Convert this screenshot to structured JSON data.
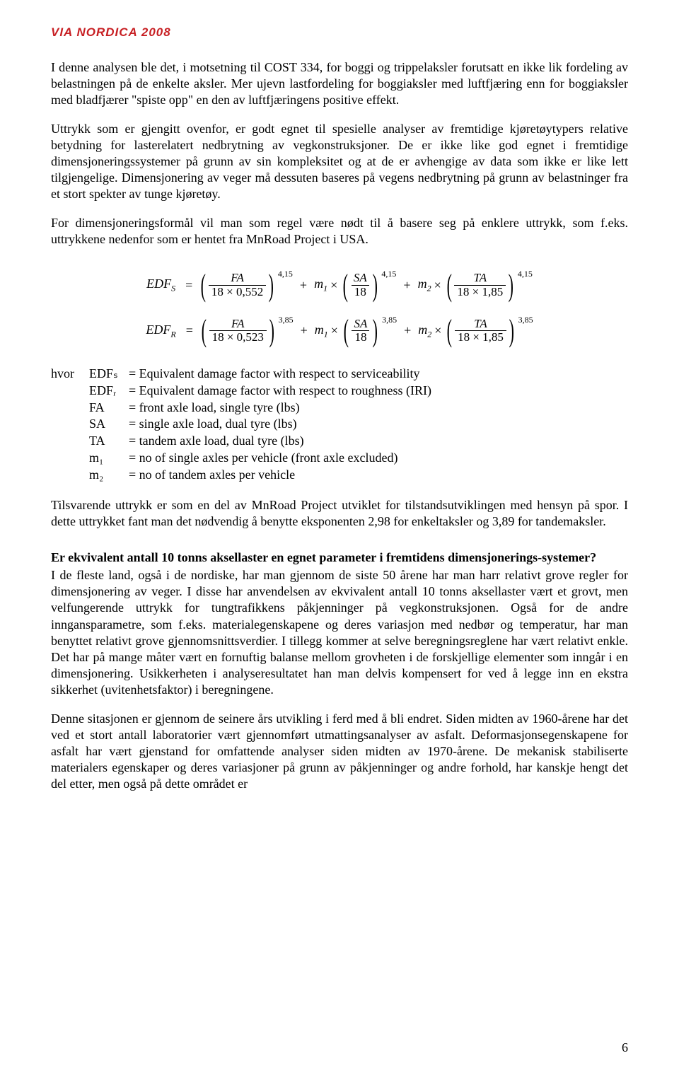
{
  "logo": {
    "via": "VIA",
    "nordica": "NORDICA",
    "year": "2008"
  },
  "p1": "I denne analysen ble det, i motsetning til COST 334, for boggi og trippelaksler forutsatt en ikke lik fordeling av belastningen på de enkelte aksler. Mer ujevn lastfordeling for boggiaksler med luftfjæring enn for boggiaksler med bladfjærer \"spiste opp\" en den av luftfjæringens positive effekt.",
  "p2": "Uttrykk som er gjengitt ovenfor, er godt egnet til spesielle analyser av fremtidige kjøretøytypers relative betydning for lasterelatert nedbrytning av vegkonstruksjoner. De er ikke like god egnet i fremtidige dimensjoneringssystemer på grunn av sin kompleksitet og at de er avhengige av data som ikke er like lett tilgjengelige. Dimensjonering av veger må dessuten baseres på vegens nedbrytning på grunn av belastninger fra et stort spekter av tunge kjøretøy.",
  "p3": "For dimensjoneringsformål vil man som regel være nødt til å basere seg på enklere uttrykk, som f.eks. uttrykkene nedenfor som er hentet fra MnRoad Project i USA.",
  "eq1": {
    "lhs": "EDF",
    "sub": "S",
    "t1_num": "FA",
    "t1_den": "18 × 0,552",
    "t1_exp": "4,15",
    "t2_m": "m",
    "t2_msub": "1",
    "t2_num": "SA",
    "t2_den": "18",
    "t2_exp": "4,15",
    "t3_m": "m",
    "t3_msub": "2",
    "t3_num": "TA",
    "t3_den": "18 × 1,85",
    "t3_exp": "4,15"
  },
  "eq2": {
    "lhs": "EDF",
    "sub": "R",
    "t1_num": "FA",
    "t1_den": "18 × 0,523",
    "t1_exp": "3,85",
    "t2_m": "m",
    "t2_msub": "1",
    "t2_num": "SA",
    "t2_den": "18",
    "t2_exp": "3,85",
    "t3_m": "m",
    "t3_msub": "2",
    "t3_num": "TA",
    "t3_den": "18 × 1,85",
    "t3_exp": "3,85"
  },
  "defs": {
    "lead": "hvor",
    "rows": [
      {
        "sym": "EDFₛ",
        "txt": "= Equivalent damage factor with respect to serviceability"
      },
      {
        "sym": "EDFᵣ",
        "txt": "= Equivalent damage factor with respect to roughness (IRI)"
      },
      {
        "sym": "FA",
        "txt": "= front axle load, single tyre (lbs)"
      },
      {
        "sym": "SA",
        "txt": "= single axle load, dual tyre (lbs)"
      },
      {
        "sym": "TA",
        "txt": "= tandem axle load, dual tyre (lbs)"
      },
      {
        "sym": "m₁",
        "txt": "= no of single axles per vehicle (front axle excluded)"
      },
      {
        "sym": "m₂",
        "txt": "= no of tandem axles per vehicle"
      }
    ]
  },
  "p4": "Tilsvarende uttrykk er som en del av MnRoad Project utviklet for tilstandsutviklingen med hensyn på spor. I dette uttrykket fant man det nødvendig å benytte eksponenten 2,98 for enkeltaksler og 3,89 for tandemaksler.",
  "h1": "Er ekvivalent antall 10 tonns aksellaster en egnet parameter i fremtidens dimensjonerings-systemer?",
  "p5": "I de fleste land, også i de nordiske, har man gjennom de siste 50 årene har man harr relativt grove regler for dimensjonering av veger. I disse har anvendelsen av ekvivalent antall 10 tonns aksellaster vært et grovt, men velfungerende uttrykk for tungtrafikkens påkjenninger på vegkonstruksjonen. Også for de andre inngansparametre, som f.eks. materialegenskapene og deres variasjon med nedbør og temperatur, har man benyttet relativt grove gjennomsnittsverdier. I tillegg kommer at selve beregningsreglene har vært relativt enkle. Det har på mange måter vært en fornuftig balanse mellom grovheten i de forskjellige elementer som inngår i en dimensjonering. Usikkerheten i analyseresultatet han man delvis kompensert for ved å legge inn en ekstra sikkerhet (uvitenhetsfaktor) i beregningene.",
  "p6": "Denne sitasjonen er gjennom de seinere års utvikling i ferd med å bli endret. Siden midten av 1960-årene har det ved et stort antall laboratorier vært gjennomført utmattingsanalyser av asfalt. Deformasjonsegenskapene for asfalt har vært gjenstand for omfattende analyser siden midten av 1970-årene. De mekanisk stabiliserte materialers egenskaper og deres variasjoner på grunn av påkjenninger og andre forhold, har kanskje hengt det del etter, men også på dette området er",
  "page": "6"
}
